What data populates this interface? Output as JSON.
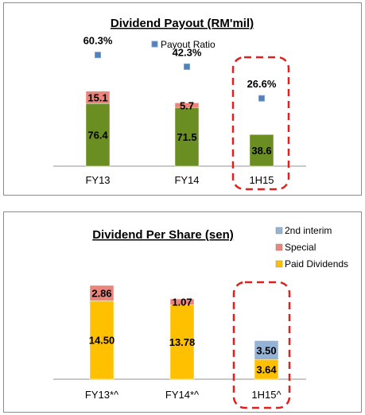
{
  "chart_data": [
    {
      "type": "bar",
      "title": "Dividend Payout (RM'mil)",
      "categories": [
        "FY13",
        "FY14",
        "1H15"
      ],
      "series": [
        {
          "name": "",
          "values": [
            76.4,
            71.5,
            38.6
          ],
          "color": "#6b8e23"
        },
        {
          "name": "",
          "values": [
            15.1,
            5.7,
            null
          ],
          "color": "#e9857b"
        }
      ],
      "payout_ratio": {
        "name": "Payout Ratio",
        "values": [
          "60.3%",
          "42.3%",
          "26.6%"
        ],
        "color": "#4f81bd"
      },
      "stacked": true,
      "highlighted_category": "1H15",
      "legend_position": "top",
      "xlabel": "",
      "ylabel": "",
      "ylim": [
        0,
        160
      ]
    },
    {
      "type": "bar",
      "title": "Dividend Per Share (sen)",
      "categories": [
        "FY13*^",
        "FY14*^",
        "1H15^"
      ],
      "series": [
        {
          "name": "Paid Dividends",
          "values": [
            14.5,
            13.78,
            3.64
          ],
          "labels": [
            "14.50",
            "13.78",
            "3.64"
          ],
          "color": "#ffc000"
        },
        {
          "name": "Special",
          "values": [
            2.86,
            1.07,
            null
          ],
          "labels": [
            "2.86",
            "1.07",
            ""
          ],
          "color": "#e9857b"
        },
        {
          "name": "2nd interim",
          "values": [
            null,
            null,
            3.5
          ],
          "labels": [
            "",
            "",
            "3.50"
          ],
          "color": "#95b3d7"
        }
      ],
      "stacked": true,
      "highlighted_category": "1H15^",
      "legend_position": "right",
      "xlabel": "",
      "ylabel": "",
      "ylim": [
        0,
        25
      ]
    }
  ]
}
